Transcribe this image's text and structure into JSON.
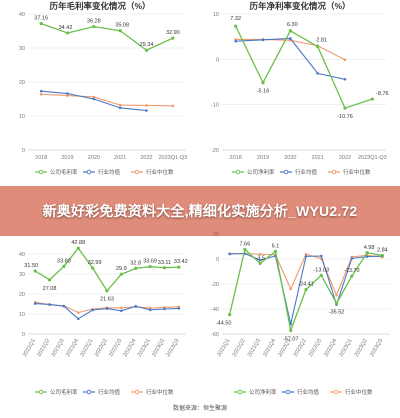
{
  "chart_data": [
    {
      "type": "line",
      "title": "历年毛利率变化情况（%）",
      "categories": [
        "2018",
        "2019",
        "2020",
        "2021",
        "2022",
        "2023Q1-Q3"
      ],
      "ylim": [
        0,
        40
      ],
      "yticks": [
        0,
        10,
        20,
        30,
        40
      ],
      "grid": true,
      "legend": "bottom",
      "series": [
        {
          "name": "公司毛利率",
          "color": "#6abf4b",
          "values": [
            37.16,
            34.42,
            36.28,
            35.08,
            29.34,
            32.9
          ],
          "labels": [
            "37.16",
            "34.42",
            "36.28",
            "35.08",
            "29.34",
            "32.90"
          ]
        },
        {
          "name": "行业均值",
          "color": "#4a78c9",
          "values": [
            17.3,
            16.6,
            15.0,
            12.4,
            11.6,
            null
          ]
        },
        {
          "name": "行业中位数",
          "color": "#f19a6b",
          "values": [
            16.4,
            16.0,
            15.6,
            13.2,
            13.1,
            13.0
          ]
        }
      ]
    },
    {
      "type": "line",
      "title": "历年净利率变化情况（%）",
      "categories": [
        "2018",
        "2019",
        "2020",
        "2021",
        "2022",
        "2023Q1-Q3"
      ],
      "ylim": [
        -20,
        10
      ],
      "yticks": [
        -20,
        -10,
        0,
        10
      ],
      "grid": true,
      "legend": "bottom",
      "series": [
        {
          "name": "公司净利率",
          "color": "#6abf4b",
          "values": [
            7.32,
            -5.16,
            6.3,
            2.81,
            -10.76,
            -8.76
          ],
          "labels": [
            "7.32",
            "-5.16",
            "6.30",
            "2.81",
            "-10.76",
            "-8.76"
          ]
        },
        {
          "name": "行业均值",
          "color": "#4a78c9",
          "values": [
            4.0,
            4.3,
            4.6,
            -3.1,
            -4.4,
            null
          ]
        },
        {
          "name": "行业中位数",
          "color": "#f19a6b",
          "values": [
            4.4,
            4.4,
            4.2,
            3.0,
            -0.1,
            null
          ]
        }
      ]
    },
    {
      "type": "line",
      "title": "",
      "categories": [
        "2021Q1",
        "2021Q2",
        "2021Q3",
        "2021Q4",
        "2022Q1",
        "2022Q2",
        "2022Q3",
        "2022Q4",
        "2023Q1",
        "2023Q2",
        "2023Q3"
      ],
      "ylim": [
        0,
        50
      ],
      "yticks": [
        0,
        10,
        20,
        30,
        40
      ],
      "grid": true,
      "legend": "bottom",
      "series": [
        {
          "name": "公司毛利率",
          "color": "#6abf4b",
          "values": [
            31.5,
            27.08,
            33.83,
            42.88,
            32.99,
            21.63,
            29.9,
            32.8,
            33.69,
            33.11,
            33.42
          ],
          "labels": [
            "31.50",
            "27.08",
            "33.83",
            "42.88",
            "32.99",
            "21.63",
            "29.9",
            "32.8",
            "33.69",
            "33.11",
            "33.42"
          ]
        },
        {
          "name": "行业均值",
          "color": "#4a78c9",
          "values": [
            15.2,
            14.8,
            13.9,
            7.6,
            12.0,
            12.7,
            11.6,
            13.9,
            12.1,
            12.5,
            12.8
          ]
        },
        {
          "name": "行业中位数",
          "color": "#f19a6b",
          "values": [
            15.9,
            14.6,
            14.1,
            10.7,
            12.5,
            13.1,
            13.1,
            13.6,
            13.0,
            13.3,
            13.6
          ]
        }
      ]
    },
    {
      "type": "line",
      "title": "",
      "categories": [
        "2021Q1",
        "2021Q2",
        "2021Q3",
        "2021Q4",
        "2022Q1",
        "2022Q2",
        "2022Q3",
        "2022Q4",
        "2023Q1",
        "2023Q2",
        "2023Q3"
      ],
      "ylim": [
        -60,
        20
      ],
      "yticks": [
        -60,
        -40,
        -20,
        0,
        20
      ],
      "grid": true,
      "legend": "bottom",
      "series": [
        {
          "name": "公司净利率",
          "color": "#6abf4b",
          "values": [
            -44.5,
            7.66,
            -3.5,
            6.1,
            -57.07,
            -24.41,
            -13.03,
            -35.52,
            -13.7,
            4.98,
            2.84
          ],
          "labels": [
            "-44.50",
            "7.66",
            "-3.5",
            "6.1",
            "-57.07",
            "-24.41",
            "-13.03",
            "-35.52",
            "-13.70",
            "4.98",
            "2.84"
          ]
        },
        {
          "name": "行业均值",
          "color": "#4a78c9",
          "values": [
            4.0,
            4.3,
            -0.9,
            2.5,
            -52.0,
            2.1,
            2.4,
            -36.5,
            0.5,
            1.9,
            2.3
          ]
        },
        {
          "name": "行业中位数",
          "color": "#f19a6b",
          "values": [
            4.4,
            4.4,
            3.8,
            3.4,
            -24.0,
            3.9,
            0.2,
            -29.0,
            1.7,
            3.0,
            1.6
          ]
        }
      ]
    }
  ],
  "banner": {
    "text": "新奥好彩免费资料大全,精细化实施分析_WYU2.72"
  },
  "source": {
    "text": "数据来源：恒生聚源"
  }
}
